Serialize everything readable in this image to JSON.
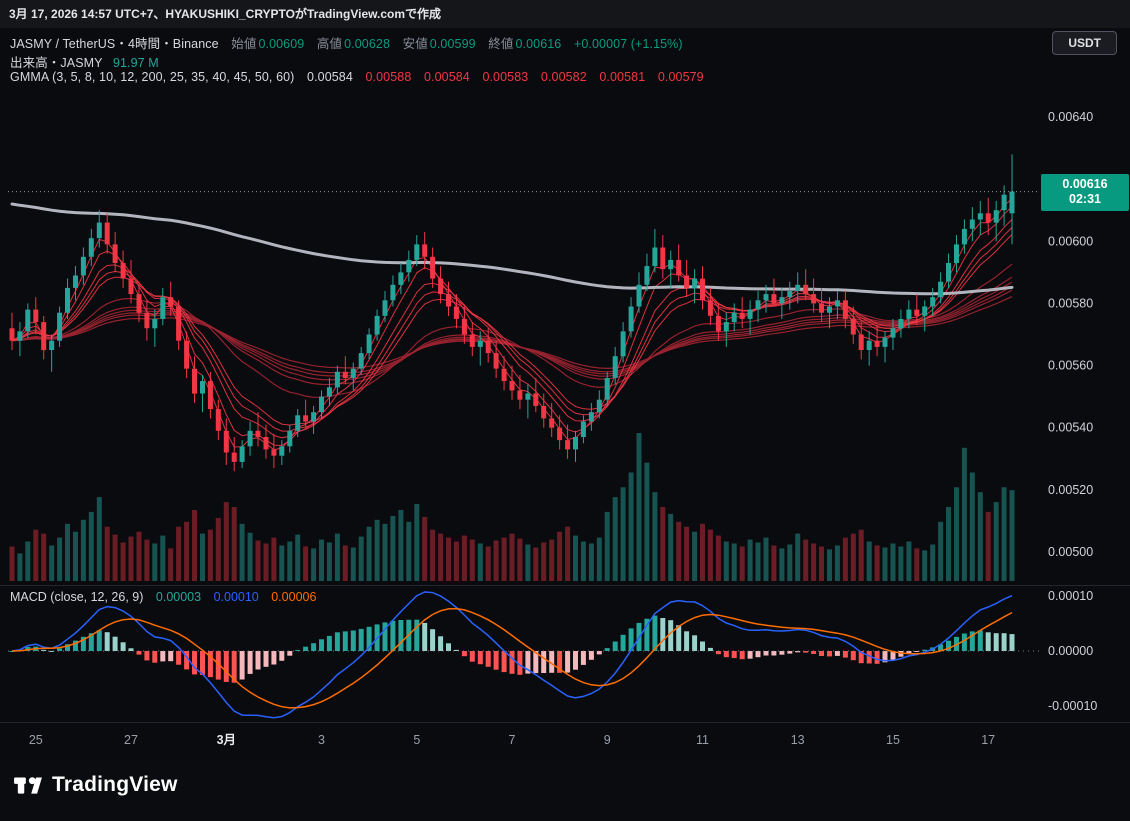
{
  "topbar": {
    "attribution": "3月 17, 2026 14:57 UTC+7、HYAKUSHIKI_CRYPTOがTradingView.comで作成"
  },
  "currency_button": "USDT",
  "header": {
    "symbol_line": {
      "symbol": "JASMY / TetherUS・4時間・Binance",
      "ohlc": [
        {
          "label": "始値",
          "value": "0.00609"
        },
        {
          "label": "高値",
          "value": "0.00628"
        },
        {
          "label": "安値",
          "value": "0.00599"
        },
        {
          "label": "終値",
          "value": "0.00616"
        }
      ],
      "change": "+0.00007 (+1.15%)"
    },
    "volume_line": {
      "label": "出来高・JASMY",
      "value": "91.97 M"
    },
    "gmma_line": {
      "label": "GMMA (3, 5, 8, 10, 12, 200, 25, 35, 40, 45, 50, 60)",
      "values": [
        {
          "text": "0.00584",
          "color": "#d6d8dd"
        },
        {
          "text": "0.00588",
          "color": "#f23645"
        },
        {
          "text": "0.00584",
          "color": "#f23645"
        },
        {
          "text": "0.00583",
          "color": "#f23645"
        },
        {
          "text": "0.00582",
          "color": "#f23645"
        },
        {
          "text": "0.00581",
          "color": "#f23645"
        },
        {
          "text": "0.00579",
          "color": "#f23645"
        }
      ]
    }
  },
  "macd_legend": {
    "title": "MACD",
    "params": "(close, 12, 26, 9)",
    "values": [
      {
        "text": "0.00003",
        "color": "#26a69a"
      },
      {
        "text": "0.00010",
        "color": "#2962ff"
      },
      {
        "text": "0.00006",
        "color": "#ff6d00"
      }
    ]
  },
  "price_label": {
    "price": "0.00616",
    "countdown": "02:31",
    "color": "#089981"
  },
  "footer": {
    "brand": "TradingView"
  },
  "colors": {
    "up": "#26a69a",
    "down": "#f23645",
    "vol_up": "rgba(38,166,154,0.48)",
    "vol_down": "rgba(242,54,69,0.42)",
    "gmma_short": "#f23645",
    "gmma_long": "#9c2430",
    "ema200": "#b2b5be",
    "macd_line": "#2962ff",
    "macd_signal": "#ff6d00",
    "hist_up_grow": "#26a69a",
    "hist_up_fall": "#9bd2cc",
    "hist_dn_grow": "#f5b8bd",
    "hist_dn_fall": "#ff5252",
    "axis_text": "#cfd2d8",
    "time_text": "#9aa0a8",
    "month_text": "#e8eaed",
    "separator": "#23262e",
    "badge": "#089981"
  },
  "chart_data": {
    "type": "candlestick",
    "title": "JASMY / TetherUS・4時間・Binance",
    "symbol": "JASMY/USDT",
    "interval": "4h",
    "price_scale": 1e-05,
    "ylim": [
      0.0049,
      0.00668
    ],
    "last_price": 616,
    "volume_unit": "M",
    "price_axis_ticks": [
      640,
      620,
      600,
      580,
      560,
      540,
      520,
      500
    ],
    "macd_axis_ticks": [
      10,
      0,
      -10
    ],
    "indicators": {
      "gmma_periods": [
        3,
        5,
        8,
        10,
        12,
        200,
        25,
        35,
        40,
        45,
        50,
        60
      ],
      "macd_params": [
        12,
        26,
        9
      ],
      "ema200_seed": 612
    },
    "time_ticks": [
      {
        "index": 3,
        "label": "25",
        "month": false
      },
      {
        "index": 15,
        "label": "27",
        "month": false
      },
      {
        "index": 27,
        "label": "3月",
        "month": true
      },
      {
        "index": 39,
        "label": "3",
        "month": false
      },
      {
        "index": 51,
        "label": "5",
        "month": false
      },
      {
        "index": 63,
        "label": "7",
        "month": false
      },
      {
        "index": 75,
        "label": "9",
        "month": false
      },
      {
        "index": 87,
        "label": "11",
        "month": false
      },
      {
        "index": 99,
        "label": "13",
        "month": false
      },
      {
        "index": 111,
        "label": "15",
        "month": false
      },
      {
        "index": 123,
        "label": "17",
        "month": false
      }
    ],
    "candles": [
      [
        572,
        577,
        565,
        568,
        35
      ],
      [
        568,
        574,
        563,
        571,
        28
      ],
      [
        571,
        580,
        569,
        578,
        40
      ],
      [
        578,
        582,
        570,
        574,
        52
      ],
      [
        574,
        576,
        562,
        565,
        48
      ],
      [
        565,
        570,
        558,
        568,
        36
      ],
      [
        568,
        579,
        566,
        577,
        44
      ],
      [
        577,
        588,
        575,
        585,
        58
      ],
      [
        585,
        592,
        581,
        589,
        50
      ],
      [
        589,
        598,
        586,
        595,
        62
      ],
      [
        595,
        604,
        592,
        601,
        70
      ],
      [
        601,
        610,
        598,
        606,
        85
      ],
      [
        606,
        609,
        596,
        599,
        55
      ],
      [
        599,
        603,
        590,
        593,
        47
      ],
      [
        593,
        597,
        585,
        588,
        39
      ],
      [
        588,
        594,
        580,
        583,
        45
      ],
      [
        583,
        586,
        574,
        577,
        50
      ],
      [
        577,
        581,
        568,
        572,
        42
      ],
      [
        572,
        578,
        566,
        575,
        38
      ],
      [
        575,
        585,
        573,
        582,
        46
      ],
      [
        582,
        587,
        576,
        579,
        33
      ],
      [
        579,
        581,
        565,
        568,
        55
      ],
      [
        568,
        571,
        556,
        559,
        60
      ],
      [
        559,
        563,
        548,
        551,
        72
      ],
      [
        551,
        557,
        545,
        555,
        48
      ],
      [
        555,
        558,
        543,
        546,
        52
      ],
      [
        546,
        549,
        536,
        539,
        64
      ],
      [
        539,
        543,
        528,
        532,
        80
      ],
      [
        532,
        537,
        526,
        529,
        75
      ],
      [
        529,
        536,
        527,
        534,
        58
      ],
      [
        534,
        542,
        531,
        539,
        49
      ],
      [
        539,
        545,
        534,
        537,
        41
      ],
      [
        537,
        541,
        530,
        533,
        38
      ],
      [
        533,
        538,
        527,
        531,
        44
      ],
      [
        531,
        536,
        528,
        534,
        36
      ],
      [
        534,
        541,
        532,
        539,
        40
      ],
      [
        539,
        546,
        537,
        544,
        47
      ],
      [
        544,
        549,
        540,
        542,
        35
      ],
      [
        542,
        547,
        538,
        545,
        33
      ],
      [
        545,
        552,
        543,
        550,
        42
      ],
      [
        550,
        556,
        547,
        553,
        39
      ],
      [
        553,
        560,
        551,
        558,
        48
      ],
      [
        558,
        563,
        554,
        556,
        36
      ],
      [
        556,
        561,
        552,
        559,
        34
      ],
      [
        559,
        566,
        557,
        564,
        45
      ],
      [
        564,
        572,
        562,
        570,
        55
      ],
      [
        570,
        578,
        568,
        576,
        62
      ],
      [
        576,
        584,
        574,
        581,
        58
      ],
      [
        581,
        589,
        579,
        586,
        66
      ],
      [
        586,
        593,
        583,
        590,
        72
      ],
      [
        590,
        597,
        587,
        594,
        60
      ],
      [
        594,
        602,
        592,
        599,
        78
      ],
      [
        599,
        603,
        591,
        595,
        65
      ],
      [
        595,
        598,
        585,
        588,
        52
      ],
      [
        588,
        592,
        580,
        583,
        48
      ],
      [
        583,
        587,
        576,
        579,
        44
      ],
      [
        579,
        583,
        572,
        575,
        40
      ],
      [
        575,
        579,
        567,
        570,
        46
      ],
      [
        570,
        574,
        563,
        566,
        42
      ],
      [
        566,
        571,
        560,
        568,
        38
      ],
      [
        568,
        572,
        561,
        564,
        35
      ],
      [
        564,
        568,
        556,
        559,
        41
      ],
      [
        559,
        563,
        552,
        555,
        44
      ],
      [
        555,
        560,
        549,
        552,
        48
      ],
      [
        552,
        557,
        546,
        549,
        43
      ],
      [
        549,
        554,
        543,
        551,
        37
      ],
      [
        551,
        556,
        545,
        547,
        34
      ],
      [
        547,
        551,
        540,
        543,
        39
      ],
      [
        543,
        548,
        537,
        540,
        42
      ],
      [
        540,
        544,
        533,
        536,
        50
      ],
      [
        536,
        541,
        530,
        533,
        55
      ],
      [
        533,
        539,
        529,
        537,
        46
      ],
      [
        537,
        544,
        535,
        542,
        40
      ],
      [
        542,
        548,
        539,
        545,
        38
      ],
      [
        545,
        552,
        543,
        549,
        44
      ],
      [
        549,
        558,
        547,
        556,
        70
      ],
      [
        556,
        566,
        554,
        563,
        85
      ],
      [
        563,
        574,
        561,
        571,
        95
      ],
      [
        571,
        582,
        569,
        579,
        110
      ],
      [
        579,
        590,
        577,
        586,
        150
      ],
      [
        586,
        596,
        584,
        592,
        120
      ],
      [
        592,
        604,
        590,
        598,
        90
      ],
      [
        598,
        602,
        588,
        591,
        75
      ],
      [
        591,
        597,
        585,
        594,
        68
      ],
      [
        594,
        599,
        587,
        589,
        60
      ],
      [
        589,
        594,
        582,
        585,
        55
      ],
      [
        585,
        591,
        580,
        588,
        50
      ],
      [
        588,
        592,
        578,
        581,
        58
      ],
      [
        581,
        585,
        573,
        576,
        52
      ],
      [
        576,
        580,
        568,
        571,
        46
      ],
      [
        571,
        577,
        566,
        574,
        40
      ],
      [
        574,
        580,
        571,
        577,
        38
      ],
      [
        577,
        582,
        572,
        575,
        35
      ],
      [
        575,
        581,
        570,
        578,
        42
      ],
      [
        578,
        584,
        574,
        581,
        39
      ],
      [
        581,
        586,
        577,
        583,
        44
      ],
      [
        583,
        588,
        579,
        580,
        36
      ],
      [
        580,
        585,
        575,
        582,
        33
      ],
      [
        582,
        587,
        578,
        584,
        37
      ],
      [
        584,
        590,
        580,
        586,
        48
      ],
      [
        586,
        591,
        581,
        583,
        42
      ],
      [
        583,
        588,
        577,
        580,
        38
      ],
      [
        580,
        585,
        574,
        577,
        35
      ],
      [
        577,
        582,
        572,
        579,
        32
      ],
      [
        579,
        584,
        575,
        581,
        36
      ],
      [
        581,
        584,
        572,
        575,
        44
      ],
      [
        575,
        579,
        567,
        570,
        48
      ],
      [
        570,
        574,
        562,
        565,
        52
      ],
      [
        565,
        571,
        560,
        568,
        40
      ],
      [
        568,
        573,
        563,
        566,
        36
      ],
      [
        566,
        571,
        561,
        569,
        34
      ],
      [
        569,
        575,
        565,
        572,
        38
      ],
      [
        572,
        578,
        569,
        575,
        35
      ],
      [
        575,
        581,
        572,
        578,
        40
      ],
      [
        578,
        583,
        573,
        576,
        33
      ],
      [
        576,
        581,
        571,
        579,
        31
      ],
      [
        579,
        585,
        576,
        582,
        37
      ],
      [
        582,
        590,
        580,
        587,
        60
      ],
      [
        587,
        596,
        585,
        593,
        75
      ],
      [
        593,
        602,
        590,
        599,
        95
      ],
      [
        599,
        607,
        596,
        604,
        135
      ],
      [
        604,
        611,
        600,
        607,
        110
      ],
      [
        607,
        613,
        602,
        609,
        90
      ],
      [
        609,
        614,
        602,
        606,
        70
      ],
      [
        606,
        613,
        600,
        610,
        80
      ],
      [
        610,
        618,
        605,
        615,
        95
      ],
      [
        609,
        628,
        599,
        616,
        92
      ]
    ]
  }
}
